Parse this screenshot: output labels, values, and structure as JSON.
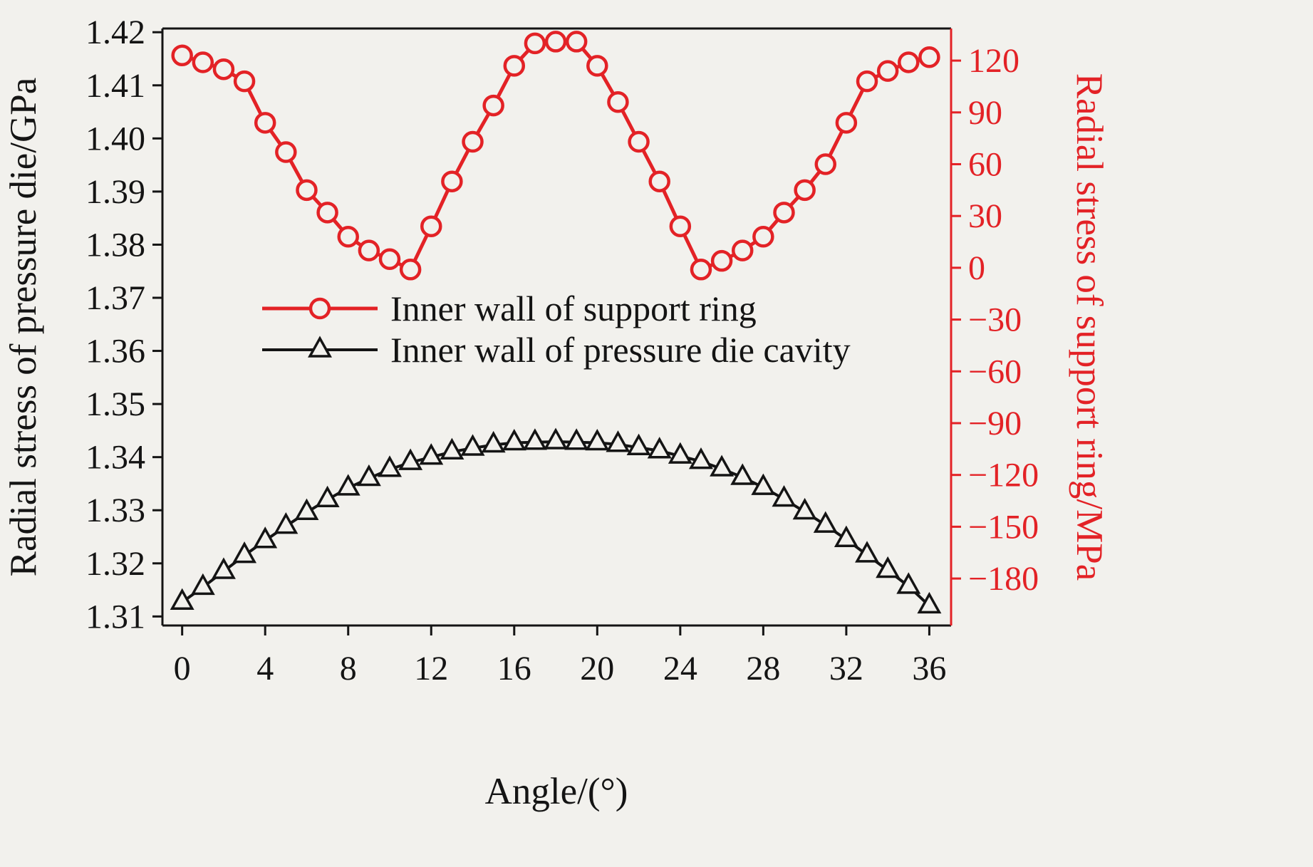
{
  "chart_data": {
    "type": "line",
    "background": "#f2f1ed",
    "grid": false,
    "legend": {
      "position": "inside-center-left"
    },
    "axes": {
      "x": {
        "title": "Angle/(°)",
        "range": [
          -0.95,
          37.05
        ],
        "ticks": [
          {
            "v": 0,
            "label": "0"
          },
          {
            "v": 4,
            "label": "4"
          },
          {
            "v": 8,
            "label": "8"
          },
          {
            "v": 12,
            "label": "12"
          },
          {
            "v": 16,
            "label": "16"
          },
          {
            "v": 20,
            "label": "20"
          },
          {
            "v": 24,
            "label": "24"
          },
          {
            "v": 28,
            "label": "28"
          },
          {
            "v": 32,
            "label": "32"
          },
          {
            "v": 36,
            "label": "36"
          }
        ]
      },
      "left": {
        "title": "Radial stress of pressure die/GPa",
        "unit": "GPa",
        "color": "#141414",
        "range": [
          1.3083,
          1.4207
        ],
        "ticks": [
          {
            "v": 1.31,
            "label": "1.31"
          },
          {
            "v": 1.32,
            "label": "1.32"
          },
          {
            "v": 1.33,
            "label": "1.33"
          },
          {
            "v": 1.34,
            "label": "1.34"
          },
          {
            "v": 1.35,
            "label": "1.35"
          },
          {
            "v": 1.36,
            "label": "1.36"
          },
          {
            "v": 1.37,
            "label": "1.37"
          },
          {
            "v": 1.38,
            "label": "1.38"
          },
          {
            "v": 1.39,
            "label": "1.39"
          },
          {
            "v": 1.4,
            "label": "1.40"
          },
          {
            "v": 1.41,
            "label": "1.41"
          },
          {
            "v": 1.42,
            "label": "1.42"
          }
        ]
      },
      "right": {
        "title": "Radial stress of support ring/MPa",
        "unit": "MPa",
        "color": "#e32226",
        "range": [
          -207.2,
          138.6
        ],
        "ticks": [
          {
            "v": 120,
            "label": "120"
          },
          {
            "v": 90,
            "label": "90"
          },
          {
            "v": 60,
            "label": "60"
          },
          {
            "v": 30,
            "label": "30"
          },
          {
            "v": 0,
            "label": "0"
          },
          {
            "v": -30,
            "label": "−30"
          },
          {
            "v": -60,
            "label": "−60"
          },
          {
            "v": -90,
            "label": "−90"
          },
          {
            "v": -120,
            "label": "−120"
          },
          {
            "v": -150,
            "label": "−150"
          },
          {
            "v": -180,
            "label": "−180"
          }
        ]
      }
    },
    "series": [
      {
        "name": "Inner wall of support ring",
        "axis": "right",
        "color": "#e32226",
        "marker": "circle",
        "x": [
          0,
          1,
          2,
          3,
          4,
          5,
          6,
          7,
          8,
          9,
          10,
          11,
          12,
          13,
          14,
          15,
          16,
          17,
          18,
          19,
          20,
          21,
          22,
          23,
          24,
          25,
          26,
          27,
          28,
          29,
          30,
          31,
          32,
          33,
          34,
          35,
          36
        ],
        "y": [
          123,
          119,
          115,
          108,
          84,
          67,
          45,
          32,
          18,
          10,
          5,
          -1,
          24,
          50,
          73,
          94,
          117,
          130,
          131,
          131,
          117,
          96,
          73,
          50,
          24,
          -1,
          4,
          10,
          18,
          32,
          45,
          60,
          84,
          108,
          114,
          119,
          122
        ]
      },
      {
        "name": "Inner wall of pressure die cavity",
        "axis": "left",
        "color": "#141414",
        "marker": "triangle-up",
        "x": [
          0,
          1,
          2,
          3,
          4,
          5,
          6,
          7,
          8,
          9,
          10,
          11,
          12,
          13,
          14,
          15,
          16,
          17,
          18,
          19,
          20,
          21,
          22,
          23,
          24,
          25,
          26,
          27,
          28,
          29,
          30,
          31,
          32,
          33,
          34,
          35,
          36
        ],
        "y": [
          1.3127,
          1.3155,
          1.3185,
          1.3215,
          1.3243,
          1.327,
          1.3296,
          1.332,
          1.3342,
          1.336,
          1.3377,
          1.339,
          1.34,
          1.341,
          1.3417,
          1.3423,
          1.3427,
          1.3428,
          1.3429,
          1.3428,
          1.3427,
          1.3424,
          1.3418,
          1.3412,
          1.3402,
          1.3392,
          1.3378,
          1.3362,
          1.3343,
          1.3321,
          1.3297,
          1.3272,
          1.3245,
          1.3216,
          1.3187,
          1.3157,
          1.312
        ]
      }
    ]
  }
}
